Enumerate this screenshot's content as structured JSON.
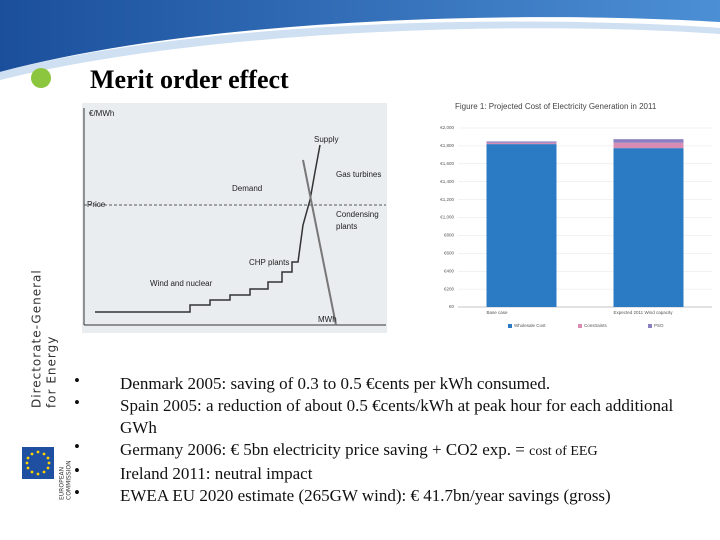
{
  "header": {
    "title": "Merit order effect"
  },
  "sidebar": {
    "dg": "Directorate-General",
    "energy": "for Energy",
    "commission": [
      "EUROPEAN",
      "COMMISSION"
    ]
  },
  "diagram": {
    "y_label": "€/MWh",
    "price": "Price",
    "supply": "Supply",
    "gas_turbines": "Gas turbines",
    "demand": "Demand",
    "condensing": [
      "Condensing",
      "plants"
    ],
    "chp": "CHP plants",
    "wind": "Wind and nuclear",
    "x_label": "MWh"
  },
  "chart_data": {
    "type": "bar",
    "stacked": true,
    "title": "Figure 1: Projected Cost of Electricity Generation in 2011",
    "categories": [
      "Base case",
      "Expected 2011 Wind capacity"
    ],
    "series": [
      {
        "name": "Wholesale Cost",
        "color": "#2b7bc4",
        "values": [
          1820,
          1775
        ]
      },
      {
        "name": "Constraints",
        "color": "#d98cb3",
        "values": [
          15,
          60
        ]
      },
      {
        "name": "PSO",
        "color": "#8a7fc0",
        "values": [
          15,
          40
        ]
      }
    ],
    "ylim": [
      0,
      2000
    ],
    "yticks": [
      {
        "value": 0,
        "label": "€0"
      },
      {
        "value": 200,
        "label": "€200"
      },
      {
        "value": 400,
        "label": "€400"
      },
      {
        "value": 600,
        "label": "€600"
      },
      {
        "value": 800,
        "label": "€800"
      },
      {
        "value": 1000,
        "label": "€1,000"
      },
      {
        "value": 1200,
        "label": "€1,200"
      },
      {
        "value": 1400,
        "label": "€1,400"
      },
      {
        "value": 1600,
        "label": "€1,600"
      },
      {
        "value": 1800,
        "label": "€1,800"
      },
      {
        "value": 2000,
        "label": "€2,000"
      }
    ],
    "grid": true
  },
  "bullets": [
    "Denmark 2005: saving of 0.3 to 0.5 €cents per kWh consumed.",
    "Spain 2005: a reduction of about 0.5 €cents/kWh at peak hour for each additional GWh",
    {
      "text": "Germany 2006: € 5bn electricity price saving + CO2 exp. = ",
      "small": "cost of EEG"
    },
    "Ireland 2011: neutral impact",
    "EWEA EU 2020 estimate (265GW wind): € 41.7bn/year savings (gross)"
  ]
}
